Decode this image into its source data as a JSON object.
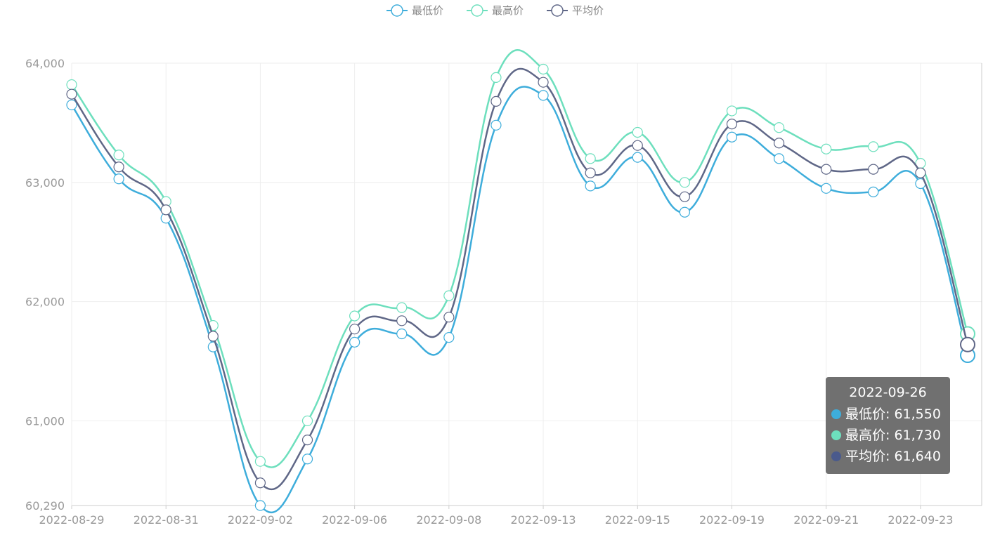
{
  "legend": [
    {
      "name": "最低价",
      "color": "#3eaddb"
    },
    {
      "name": "最高价",
      "color": "#6ddfbd"
    },
    {
      "name": "平均价",
      "color": "#5f6787"
    }
  ],
  "tooltip": {
    "title": "2022-09-26",
    "rows": [
      {
        "text": "最低价: 61,550",
        "color": "#3eaddb"
      },
      {
        "text": "最高价: 61,730",
        "color": "#6ddfbd"
      },
      {
        "text": "平均价: 61,640",
        "color": "#4a5a8c"
      }
    ]
  },
  "chart_data": {
    "type": "line",
    "title": "",
    "xlabel": "",
    "ylabel": "",
    "smooth": true,
    "legend_position": "top-center",
    "grid": true,
    "ylim": [
      60290,
      64000
    ],
    "y_ticks": [
      {
        "value": 60290,
        "label": "60,290"
      },
      {
        "value": 61000,
        "label": "61,000"
      },
      {
        "value": 62000,
        "label": "62,000"
      },
      {
        "value": 63000,
        "label": "63,000"
      },
      {
        "value": 64000,
        "label": "64,000"
      }
    ],
    "x": [
      "2022-08-29",
      "2022-08-30",
      "2022-08-31",
      "2022-09-01",
      "2022-09-02",
      "2022-09-05",
      "2022-09-06",
      "2022-09-07",
      "2022-09-08",
      "2022-09-09",
      "2022-09-13",
      "2022-09-14",
      "2022-09-15",
      "2022-09-16",
      "2022-09-19",
      "2022-09-20",
      "2022-09-21",
      "2022-09-22",
      "2022-09-23",
      "2022-09-26"
    ],
    "x_tick_labels": [
      "2022-08-29",
      "2022-08-31",
      "2022-09-02",
      "2022-09-06",
      "2022-09-08",
      "2022-09-13",
      "2022-09-15",
      "2022-09-19",
      "2022-09-21",
      "2022-09-23"
    ],
    "series": [
      {
        "name": "最低价",
        "color": "#3eaddb",
        "values": [
          63650,
          63030,
          62700,
          61620,
          60290,
          60680,
          61660,
          61730,
          61700,
          63480,
          63730,
          62970,
          63210,
          62750,
          63380,
          63200,
          62950,
          62920,
          62990,
          61550
        ]
      },
      {
        "name": "最高价",
        "color": "#6ddfbd",
        "values": [
          63820,
          63230,
          62840,
          61800,
          60660,
          61000,
          61880,
          61950,
          62050,
          63880,
          63950,
          63200,
          63420,
          63000,
          63600,
          63460,
          63280,
          63300,
          63160,
          61730
        ]
      },
      {
        "name": "平均价",
        "color": "#5f6787",
        "values": [
          63740,
          63130,
          62770,
          61710,
          60480,
          60840,
          61770,
          61840,
          61870,
          63680,
          63840,
          63080,
          63310,
          62880,
          63490,
          63330,
          63110,
          63110,
          63080,
          61640
        ]
      }
    ]
  }
}
